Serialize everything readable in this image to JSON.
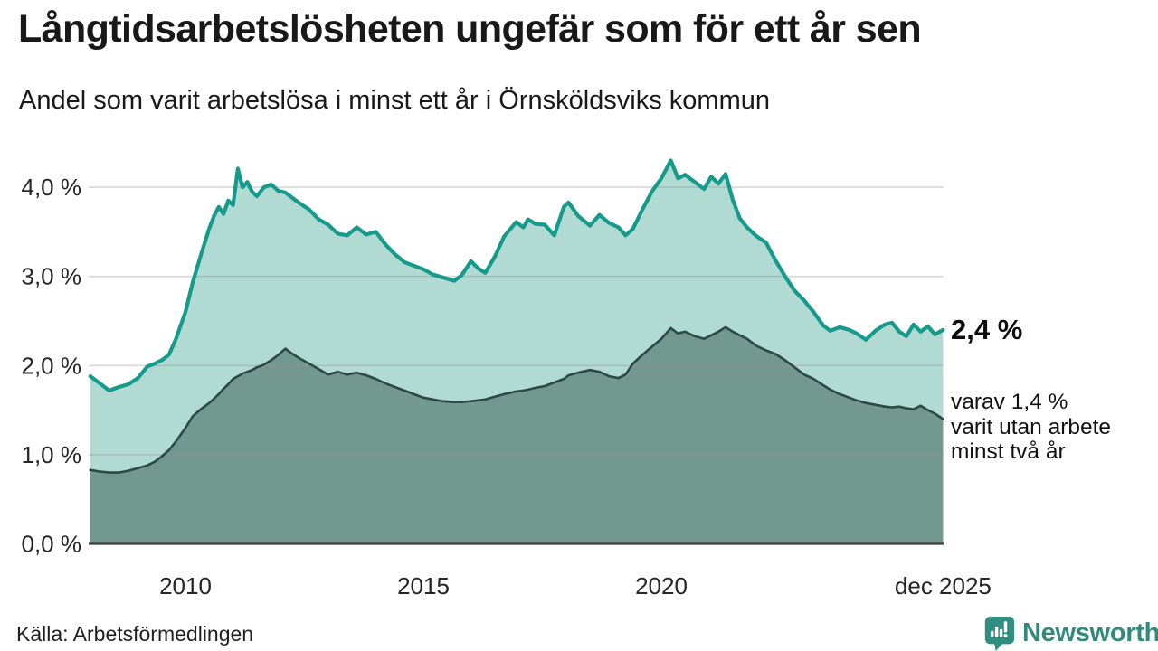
{
  "header": {
    "title": "Långtidsarbetslösheten ungefär som för ett år sen",
    "subtitle": "Andel som varit arbetslösa i minst ett år i Örnsköldsviks kommun"
  },
  "annotations": {
    "total_latest": "2,4 %",
    "two_year_lines": [
      "varav 1,4 %",
      "varit utan arbete",
      "minst två år"
    ]
  },
  "footer": {
    "source": "Källa: Arbetsförmedlingen",
    "brand": "Newsworthy",
    "brand_icon": "newsworthy-bubble-bar-chart-icon"
  },
  "colors": {
    "total_line": "#169a8b",
    "total_fill": "#b0dad2",
    "two_year_fill": "#739890",
    "two_year_line": "#2b4a44",
    "grid": "#969696",
    "axis": "#3c3c3c",
    "tick_text": "#262626",
    "brand": "#2e8f80"
  },
  "chart_data": {
    "type": "area",
    "title": "Långtidsarbetslösheten ungefär som för ett år sen",
    "subtitle": "Andel som varit arbetslösa i minst ett år i Örnsköldsviks kommun",
    "unit": "%",
    "grid": true,
    "x_range": [
      2008.0,
      2025.92
    ],
    "y_range": [
      0,
      4.45
    ],
    "y_ticks": [
      {
        "value": 0,
        "label": "0,0 %"
      },
      {
        "value": 1,
        "label": "1,0 %"
      },
      {
        "value": 2,
        "label": "2,0 %"
      },
      {
        "value": 3,
        "label": "3,0 %"
      },
      {
        "value": 4,
        "label": "4,0 %"
      }
    ],
    "x_ticks": [
      {
        "year": 2010,
        "label": "2010"
      },
      {
        "year": 2015,
        "label": "2015"
      },
      {
        "year": 2020,
        "label": "2020"
      },
      {
        "year": 2025.92,
        "label": "dec 2025"
      }
    ],
    "x": [
      2008.0,
      2008.2,
      2008.4,
      2008.6,
      2008.8,
      2009.0,
      2009.2,
      2009.35,
      2009.5,
      2009.65,
      2009.8,
      2010.0,
      2010.15,
      2010.3,
      2010.5,
      2010.6,
      2010.7,
      2010.8,
      2010.9,
      2011.0,
      2011.1,
      2011.2,
      2011.3,
      2011.4,
      2011.5,
      2011.65,
      2011.8,
      2011.95,
      2012.1,
      2012.25,
      2012.4,
      2012.6,
      2012.8,
      2013.0,
      2013.2,
      2013.4,
      2013.6,
      2013.8,
      2014.0,
      2014.2,
      2014.4,
      2014.6,
      2014.8,
      2015.0,
      2015.2,
      2015.4,
      2015.65,
      2015.8,
      2016.0,
      2016.15,
      2016.3,
      2016.5,
      2016.7,
      2016.95,
      2017.1,
      2017.2,
      2017.35,
      2017.55,
      2017.75,
      2017.95,
      2018.05,
      2018.25,
      2018.5,
      2018.7,
      2018.9,
      2019.1,
      2019.25,
      2019.4,
      2019.6,
      2019.8,
      2020.0,
      2020.2,
      2020.35,
      2020.5,
      2020.7,
      2020.9,
      2021.05,
      2021.2,
      2021.35,
      2021.5,
      2021.65,
      2021.8,
      2022.0,
      2022.2,
      2022.4,
      2022.6,
      2022.8,
      2023.0,
      2023.2,
      2023.4,
      2023.55,
      2023.75,
      2023.95,
      2024.1,
      2024.3,
      2024.5,
      2024.7,
      2024.85,
      2025.0,
      2025.15,
      2025.3,
      2025.45,
      2025.6,
      2025.75,
      2025.92
    ],
    "series": [
      {
        "name": "Arbetslösa minst ett år",
        "latest_label": "2,4 %",
        "values": [
          1.88,
          1.8,
          1.72,
          1.76,
          1.79,
          1.86,
          1.99,
          2.02,
          2.06,
          2.12,
          2.3,
          2.6,
          2.93,
          3.2,
          3.54,
          3.68,
          3.78,
          3.7,
          3.85,
          3.8,
          4.21,
          4.0,
          4.06,
          3.95,
          3.9,
          4.0,
          4.03,
          3.96,
          3.94,
          3.88,
          3.82,
          3.75,
          3.64,
          3.58,
          3.48,
          3.46,
          3.55,
          3.47,
          3.5,
          3.36,
          3.25,
          3.16,
          3.12,
          3.08,
          3.02,
          2.99,
          2.95,
          3.01,
          3.17,
          3.09,
          3.04,
          3.22,
          3.45,
          3.61,
          3.55,
          3.64,
          3.59,
          3.58,
          3.46,
          3.78,
          3.83,
          3.68,
          3.57,
          3.69,
          3.6,
          3.55,
          3.46,
          3.53,
          3.75,
          3.95,
          4.1,
          4.3,
          4.1,
          4.14,
          4.06,
          3.98,
          4.12,
          4.04,
          4.15,
          3.86,
          3.65,
          3.55,
          3.45,
          3.38,
          3.18,
          3.0,
          2.84,
          2.73,
          2.6,
          2.45,
          2.39,
          2.43,
          2.4,
          2.36,
          2.29,
          2.39,
          2.46,
          2.48,
          2.38,
          2.33,
          2.46,
          2.38,
          2.44,
          2.35,
          2.4
        ]
      },
      {
        "name": "Varav utan arbete minst två år",
        "latest_label": "1,4 %",
        "values": [
          0.83,
          0.81,
          0.8,
          0.8,
          0.82,
          0.85,
          0.88,
          0.92,
          0.98,
          1.05,
          1.15,
          1.3,
          1.43,
          1.5,
          1.58,
          1.63,
          1.68,
          1.74,
          1.79,
          1.85,
          1.88,
          1.91,
          1.93,
          1.95,
          1.98,
          2.01,
          2.06,
          2.12,
          2.19,
          2.13,
          2.08,
          2.02,
          1.96,
          1.9,
          1.93,
          1.9,
          1.92,
          1.89,
          1.85,
          1.8,
          1.76,
          1.72,
          1.68,
          1.64,
          1.62,
          1.6,
          1.59,
          1.59,
          1.6,
          1.61,
          1.62,
          1.65,
          1.68,
          1.71,
          1.72,
          1.73,
          1.75,
          1.77,
          1.81,
          1.85,
          1.89,
          1.92,
          1.95,
          1.93,
          1.88,
          1.86,
          1.9,
          2.02,
          2.12,
          2.21,
          2.3,
          2.42,
          2.36,
          2.38,
          2.33,
          2.3,
          2.34,
          2.38,
          2.43,
          2.38,
          2.34,
          2.3,
          2.22,
          2.17,
          2.13,
          2.06,
          1.98,
          1.9,
          1.85,
          1.78,
          1.73,
          1.68,
          1.64,
          1.61,
          1.58,
          1.56,
          1.54,
          1.53,
          1.54,
          1.52,
          1.51,
          1.55,
          1.5,
          1.46,
          1.4
        ]
      }
    ]
  }
}
